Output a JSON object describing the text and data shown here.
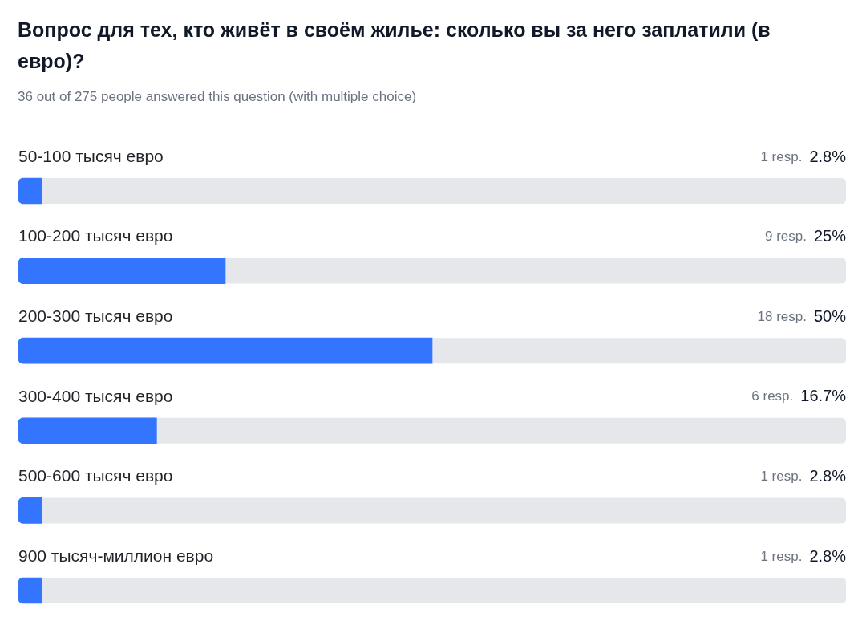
{
  "chart_data": {
    "type": "bar",
    "orientation": "horizontal",
    "title": "Вопрос для тех, кто живёт в своём жилье: сколько вы за него заплатили (в евро)?",
    "subtitle": "36 out of 275 people answered this question (with multiple choice)",
    "categories": [
      "50-100 тысяч евро",
      "100-200 тысяч евро",
      "200-300 тысяч евро",
      "300-400 тысяч евро",
      "500-600 тысяч евро",
      "900 тысяч-миллион евро"
    ],
    "values": [
      2.8,
      25,
      50,
      16.7,
      2.8,
      2.8
    ],
    "value_labels": [
      "1 resp. 2.8%",
      "9 resp. 25%",
      "18 resp. 50%",
      "6 resp. 16.7%",
      "1 resp. 2.8%",
      "1 resp. 2.8%"
    ],
    "color": "#3375fe",
    "xlim": [
      0,
      100
    ],
    "tick_labels": "y"
  }
}
